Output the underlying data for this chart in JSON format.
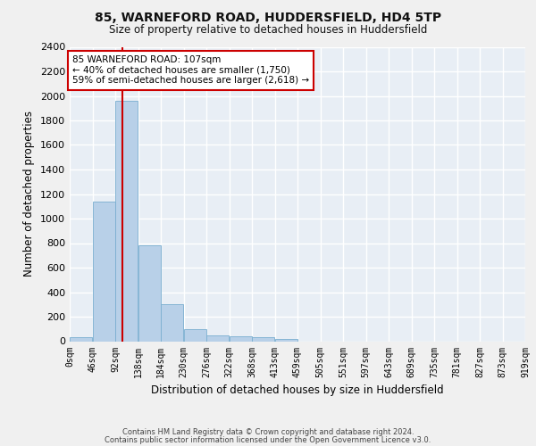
{
  "title1": "85, WARNEFORD ROAD, HUDDERSFIELD, HD4 5TP",
  "title2": "Size of property relative to detached houses in Huddersfield",
  "xlabel": "Distribution of detached houses by size in Huddersfield",
  "ylabel": "Number of detached properties",
  "bar_color": "#b8d0e8",
  "bar_edge_color": "#7aaed0",
  "bins": [
    "0sqm",
    "46sqm",
    "92sqm",
    "138sqm",
    "184sqm",
    "230sqm",
    "276sqm",
    "322sqm",
    "368sqm",
    "413sqm",
    "459sqm",
    "505sqm",
    "551sqm",
    "597sqm",
    "643sqm",
    "689sqm",
    "735sqm",
    "781sqm",
    "827sqm",
    "873sqm",
    "919sqm"
  ],
  "values": [
    35,
    1140,
    1960,
    780,
    300,
    100,
    50,
    40,
    30,
    20,
    0,
    0,
    0,
    0,
    0,
    0,
    0,
    0,
    0,
    0
  ],
  "ylim": [
    0,
    2400
  ],
  "yticks": [
    0,
    200,
    400,
    600,
    800,
    1000,
    1200,
    1400,
    1600,
    1800,
    2000,
    2200,
    2400
  ],
  "property_line_x": 107,
  "bin_width": 46,
  "annotation_line1": "85 WARNEFORD ROAD: 107sqm",
  "annotation_line2": "← 40% of detached houses are smaller (1,750)",
  "annotation_line3": "59% of semi-detached houses are larger (2,618) →",
  "annotation_box_color": "#ffffff",
  "annotation_box_edge": "#cc0000",
  "vline_color": "#cc0000",
  "bg_color": "#e8eef5",
  "grid_color": "#ffffff",
  "fig_bg": "#f0f0f0",
  "footer1": "Contains HM Land Registry data © Crown copyright and database right 2024.",
  "footer2": "Contains public sector information licensed under the Open Government Licence v3.0."
}
